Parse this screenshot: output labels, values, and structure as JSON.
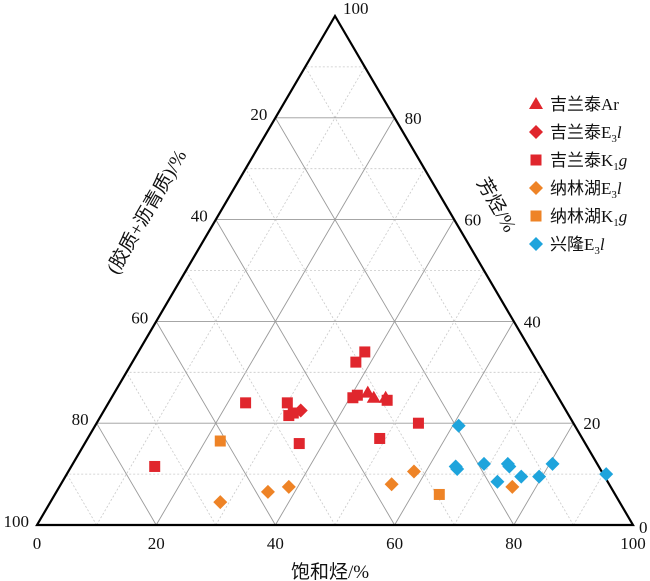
{
  "chart_data": {
    "type": "scatter",
    "subtype": "ternary",
    "grid": true,
    "legend_position": "top-right",
    "axes": {
      "bottom": {
        "label": "饱和烃/%",
        "ticks": [
          "0",
          "20",
          "40",
          "60",
          "80",
          "100"
        ]
      },
      "left": {
        "label": "(胶质+沥青质)/%",
        "ticks": [
          "20",
          "40",
          "60",
          "80",
          "100"
        ]
      },
      "right": {
        "label": "芳烃/%",
        "ticks": [
          "0",
          "20",
          "40",
          "60",
          "80",
          "100"
        ]
      }
    },
    "series": [
      {
        "name": "吉兰泰Ar",
        "name_main": "吉兰泰Ar",
        "name_sub": "",
        "name_tail": "",
        "marker": "triangle",
        "color": "#e0262d",
        "points": [
          [
            42.5,
            26
          ],
          [
            44,
            25
          ],
          [
            46,
            25
          ]
        ]
      },
      {
        "name": "吉兰泰E3l",
        "name_main": "吉兰泰E",
        "name_sub": "3",
        "name_tail": "l",
        "marker": "diamond",
        "color": "#e0262d",
        "points": [
          [
            33,
            22.5
          ]
        ]
      },
      {
        "name": "吉兰泰K1g",
        "name_main": "吉兰泰K",
        "name_sub": "1",
        "name_tail": "g",
        "marker": "square",
        "color": "#e0262d",
        "points": [
          [
            38,
            34
          ],
          [
            37.5,
            32
          ],
          [
            23,
            24
          ],
          [
            30,
            24
          ],
          [
            40.5,
            25
          ],
          [
            41,
            25.5
          ],
          [
            46.5,
            24.5
          ],
          [
            31.5,
            21.5
          ],
          [
            32,
            22
          ],
          [
            54,
            20
          ],
          [
            36,
            16
          ],
          [
            49,
            17
          ],
          [
            14,
            11.5
          ]
        ]
      },
      {
        "name": "纳林湖E3l",
        "name_main": "纳林湖E",
        "name_sub": "3",
        "name_tail": "l",
        "marker": "diamond",
        "color": "#ee8326",
        "points": [
          [
            28.5,
            4.5
          ],
          [
            35.5,
            6.5
          ],
          [
            38.5,
            7.5
          ],
          [
            55.5,
            8
          ],
          [
            58,
            10.5
          ],
          [
            76,
            7.5
          ]
        ]
      },
      {
        "name": "纳林湖K1g",
        "name_main": "纳林湖K",
        "name_sub": "1",
        "name_tail": "g",
        "marker": "square",
        "color": "#ee8326",
        "points": [
          [
            22.5,
            16.5
          ],
          [
            64.5,
            6
          ]
        ]
      },
      {
        "name": "兴隆E3l",
        "name_main": "兴隆E",
        "name_sub": "3",
        "name_tail": "l",
        "marker": "diamond",
        "color": "#1ea4dc",
        "points": [
          [
            61,
            19.5
          ],
          [
            64.5,
            11.5
          ],
          [
            65,
            11
          ],
          [
            69,
            12
          ],
          [
            73,
            12
          ],
          [
            73.5,
            11.5
          ],
          [
            73,
            8.5
          ],
          [
            76.5,
            9.5
          ],
          [
            79.5,
            9.5
          ],
          [
            80.5,
            12
          ],
          [
            90.5,
            10
          ]
        ]
      }
    ]
  }
}
